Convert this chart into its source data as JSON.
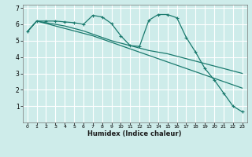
{
  "xlabel": "Humidex (Indice chaleur)",
  "background_color": "#ceecea",
  "grid_color": "#ffffff",
  "line_color": "#1a7a6e",
  "xlim": [
    -0.5,
    23.5
  ],
  "ylim": [
    0,
    7.2
  ],
  "xticks": [
    0,
    1,
    2,
    3,
    4,
    5,
    6,
    7,
    8,
    9,
    10,
    11,
    12,
    13,
    14,
    15,
    16,
    17,
    18,
    19,
    20,
    21,
    22,
    23
  ],
  "yticks": [
    1,
    2,
    3,
    4,
    5,
    6,
    7
  ],
  "series1_x": [
    0,
    1,
    2,
    3,
    4,
    5,
    6,
    7,
    8,
    9,
    10,
    11,
    12,
    13,
    14,
    15,
    16,
    17,
    18,
    19,
    20,
    21,
    22,
    23
  ],
  "series1_y": [
    5.55,
    6.2,
    6.2,
    6.2,
    6.15,
    6.1,
    6.0,
    6.55,
    6.45,
    6.05,
    5.3,
    4.7,
    4.65,
    6.25,
    6.6,
    6.6,
    6.4,
    5.2,
    4.3,
    3.3,
    2.6,
    1.8,
    1.0,
    0.65
  ],
  "series2_x": [
    0,
    1,
    2,
    3,
    4,
    5,
    6,
    7,
    8,
    9,
    10,
    11,
    12,
    13,
    14,
    15,
    16,
    17,
    18,
    19,
    20,
    21,
    22,
    23
  ],
  "series2_y": [
    5.55,
    6.2,
    6.1,
    6.0,
    5.9,
    5.75,
    5.6,
    5.4,
    5.2,
    5.0,
    4.85,
    4.7,
    4.55,
    4.4,
    4.3,
    4.2,
    4.05,
    3.9,
    3.75,
    3.6,
    3.45,
    3.3,
    3.15,
    3.0
  ],
  "series3_x": [
    0,
    1,
    2,
    3,
    4,
    5,
    6,
    7,
    8,
    9,
    10,
    11,
    12,
    13,
    14,
    15,
    16,
    17,
    18,
    19,
    20,
    21,
    22,
    23
  ],
  "series3_y": [
    5.55,
    6.2,
    6.05,
    5.9,
    5.75,
    5.6,
    5.45,
    5.3,
    5.1,
    4.9,
    4.7,
    4.5,
    4.3,
    4.1,
    3.9,
    3.7,
    3.5,
    3.3,
    3.1,
    2.9,
    2.7,
    2.5,
    2.3,
    2.1
  ]
}
